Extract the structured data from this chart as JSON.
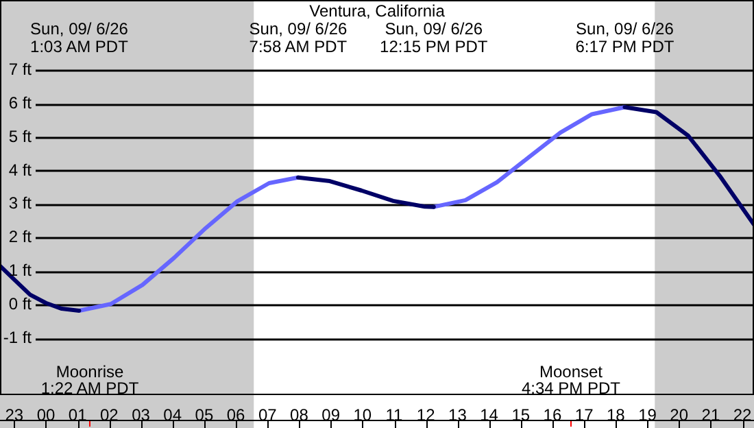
{
  "chart_data": {
    "type": "line",
    "title": "Ventura, California",
    "xlim": [
      "--09-05T22:33",
      "--09-06T22:22"
    ],
    "ylim": [
      -2.7,
      9.1
    ],
    "xticks": [
      {
        "value": "--09-05T23:00",
        "label": "23"
      },
      {
        "value": "--09-06T00:00",
        "label": "00"
      },
      {
        "value": "--09-06T01:00",
        "label": "01"
      },
      {
        "value": "--09-06T02:00",
        "label": "02"
      },
      {
        "value": "--09-06T03:00",
        "label": "03"
      },
      {
        "value": "--09-06T04:00",
        "label": "04"
      },
      {
        "value": "--09-06T05:00",
        "label": "05"
      },
      {
        "value": "--09-06T06:00",
        "label": "06"
      },
      {
        "value": "--09-06T07:00",
        "label": "07"
      },
      {
        "value": "--09-06T08:00",
        "label": "08"
      },
      {
        "value": "--09-06T09:00",
        "label": "09"
      },
      {
        "value": "--09-06T10:00",
        "label": "10"
      },
      {
        "value": "--09-06T11:00",
        "label": "11"
      },
      {
        "value": "--09-06T12:00",
        "label": "12"
      },
      {
        "value": "--09-06T13:00",
        "label": "13"
      },
      {
        "value": "--09-06T14:00",
        "label": "14"
      },
      {
        "value": "--09-06T15:00",
        "label": "15"
      },
      {
        "value": "--09-06T16:00",
        "label": "16"
      },
      {
        "value": "--09-06T17:00",
        "label": "17"
      },
      {
        "value": "--09-06T18:00",
        "label": "18"
      },
      {
        "value": "--09-06T19:00",
        "label": "19"
      },
      {
        "value": "--09-06T20:00",
        "label": "20"
      },
      {
        "value": "--09-06T21:00",
        "label": "21"
      },
      {
        "value": "--09-06T22:00",
        "label": "22"
      }
    ],
    "yticks": [
      {
        "value": -1,
        "label": "-1 ft"
      },
      {
        "value": 0,
        "label": "0 ft"
      },
      {
        "value": 1,
        "label": "1 ft"
      },
      {
        "value": 2,
        "label": "2 ft"
      },
      {
        "value": 3,
        "label": "3 ft"
      },
      {
        "value": 4,
        "label": "4 ft"
      },
      {
        "value": 5,
        "label": "5 ft"
      },
      {
        "value": 6,
        "label": "6 ft"
      },
      {
        "value": 7,
        "label": "7 ft"
      }
    ],
    "grid": "y",
    "legend": false,
    "marker": "none",
    "line_style": "solid",
    "series": [
      {
        "color": "#000066",
        "x": [
          "--09-05T22:33",
          "--09-05T23:00",
          "--09-05T23:30",
          "--09-06T00:00",
          "--09-06T00:30",
          "--09-06T01:03",
          "--09-06T04:30",
          "--09-06T07:58",
          "--09-06T08:58",
          "--09-06T09:58",
          "--09-06T10:58",
          "--09-06T11:58",
          "--09-06T12:15",
          "--09-06T15:00",
          "--09-06T18:17",
          "--09-06T19:17",
          "--09-06T20:17",
          "--09-06T21:17",
          "--09-06T22:22"
        ],
        "values": [
          1.16,
          0.75,
          0.3,
          0.05,
          -0.12,
          -0.18,
          null,
          3.8,
          3.69,
          3.41,
          3.1,
          2.93,
          2.92,
          null,
          5.9,
          5.75,
          5.05,
          3.85,
          2.39
        ]
      },
      {
        "color": "#6666ff",
        "x": [
          "--09-06T01:03",
          "--09-06T02:03",
          "--09-06T03:03",
          "--09-06T04:03",
          "--09-06T05:03",
          "--09-06T06:03",
          "--09-06T07:03",
          "--09-06T07:58",
          "--09-06T10:00",
          "--09-06T12:15",
          "--09-06T13:15",
          "--09-06T14:15",
          "--09-06T15:15",
          "--09-06T16:15",
          "--09-06T17:15",
          "--09-06T18:17"
        ],
        "values": [
          -0.18,
          0.02,
          0.59,
          1.4,
          2.29,
          3.09,
          3.63,
          3.8,
          null,
          2.92,
          3.12,
          3.66,
          4.4,
          5.14,
          5.69,
          5.9
        ]
      }
    ],
    "annotations": [
      "Sun, 09/ 6/26\n1:03 AM PDT",
      "Sun, 09/ 6/26\n7:58 AM PDT",
      "Sun, 09/ 6/26\n12:15 PM PDT",
      "Sun, 09/ 6/26\n6:17 PM PDT"
    ],
    "ref_lines": [
      {
        "axis": "x",
        "value": "--09-06T01:22",
        "label": "Moonrise\n1:22 AM PDT",
        "color": "#ff0000"
      },
      {
        "axis": "x",
        "value": "--09-06T16:34",
        "label": "Moonset\n4:34 PM PDT",
        "color": "#ff0000"
      }
    ],
    "bands": [
      {
        "axis": "x",
        "from": "--09-05T22:33",
        "to": "--09-06T06:34",
        "color": "#cccccc"
      },
      {
        "axis": "x",
        "from": "--09-06T19:14",
        "to": "--09-06T22:22",
        "color": "#cccccc"
      }
    ]
  }
}
